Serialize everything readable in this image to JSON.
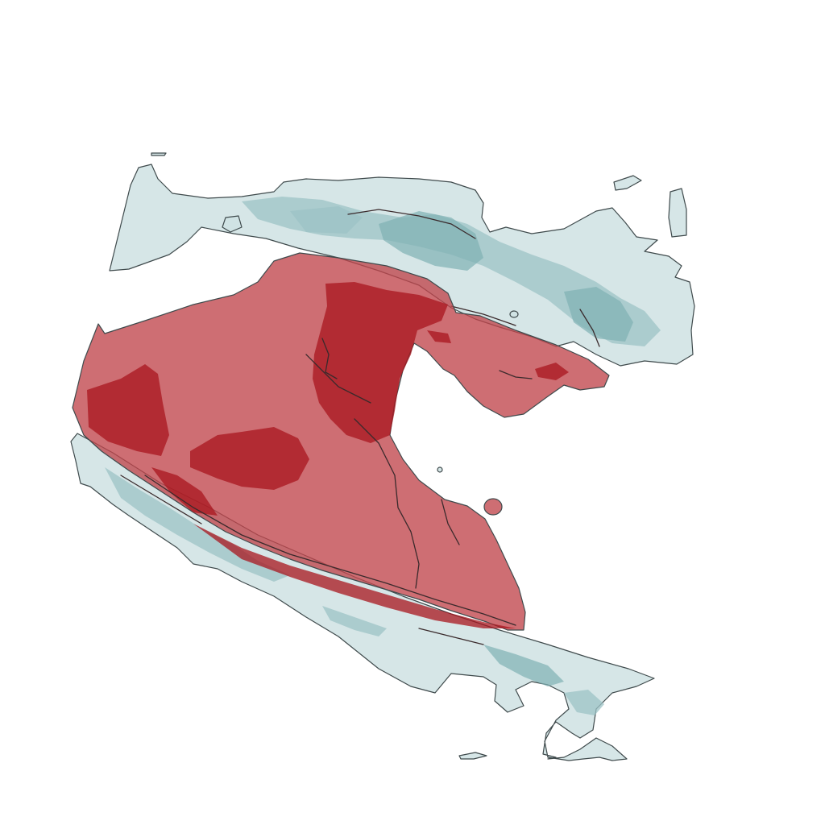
{
  "colors": {
    "background": "#ffffff",
    "teal_surface": "#cfe2e3",
    "teal_inner": "#9cc3c6",
    "red_surface": "#c0454b",
    "red_inner": "#a8161e",
    "outline": "#3f4a4c"
  }
}
